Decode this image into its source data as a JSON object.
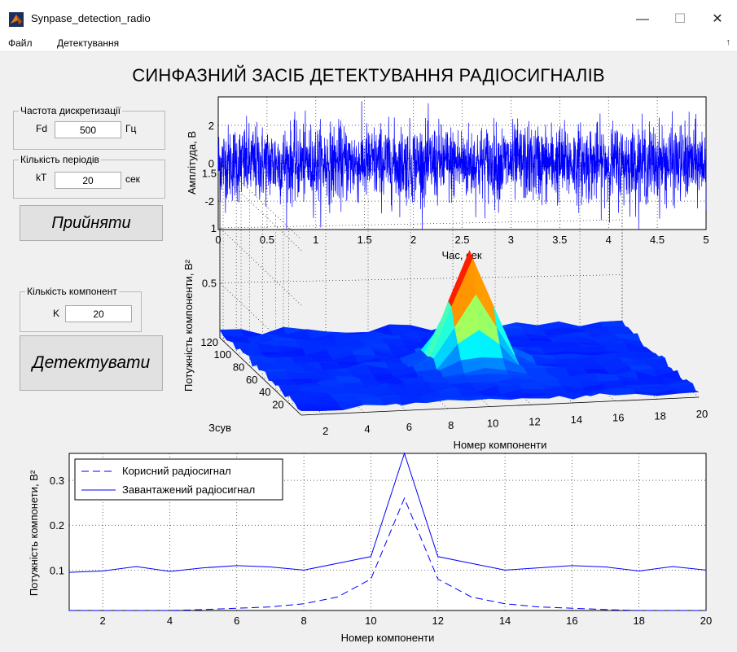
{
  "window": {
    "title": "Synpase_detection_radio",
    "icon": "matlab-icon",
    "controls": {
      "minimize": "—",
      "maximize": "☐",
      "close": "✕"
    }
  },
  "menu": {
    "items": [
      "Файл",
      "Детектування"
    ],
    "overflow_arrow": "↑"
  },
  "app_title": "СИНФАЗНИЙ ЗАСІБ ДЕТЕКТУВАННЯ РАДІОСИГНАЛІВ",
  "sampling_panel": {
    "title": "Частота дискретизації",
    "label": "Fd",
    "value": "500",
    "unit": "Гц"
  },
  "periods_panel": {
    "title": "Кількість періодів",
    "label": "kT",
    "value": "20",
    "unit": "сек"
  },
  "accept_button": "Прийняти",
  "components_panel": {
    "title": "Кількість компонент",
    "label": "K",
    "value": "20"
  },
  "detect_button": "Детектувати",
  "colors": {
    "plot_line": "#0000ff",
    "surface_low": "#0000b4",
    "surface_high": "#b40000",
    "background": "#f0f0f0",
    "axes_bg": "#ffffff"
  },
  "chart_data": [
    {
      "type": "line",
      "series_kind": "noise",
      "xlabel": "Час, сек",
      "ylabel": "Амплітуда, В",
      "xlim": [
        0,
        5
      ],
      "ylim": [
        -3.5,
        3.5
      ],
      "xticks": [
        "0",
        "0.5",
        "1",
        "1.5",
        "2",
        "2.5",
        "3",
        "3.5",
        "4",
        "4.5",
        "5"
      ],
      "yticks": [
        "-2",
        "0",
        "2"
      ],
      "grid": true,
      "noise_std": 1.0,
      "num_samples": 2500
    },
    {
      "type": "surface",
      "xlabel": "Номер компоненти",
      "ylabel": "Зсув",
      "zlabel": "Потужність компоненти, В²",
      "xticks": [
        "2",
        "4",
        "6",
        "8",
        "10",
        "12",
        "14",
        "16",
        "18",
        "20"
      ],
      "yticks": [
        "20",
        "40",
        "60",
        "80",
        "100",
        "120"
      ],
      "zticks": [
        "0.5",
        "1",
        "1.5"
      ],
      "xlim": [
        1,
        20
      ],
      "ylim": [
        1,
        125
      ],
      "zlim": [
        0,
        1.6
      ],
      "peak": {
        "component": 11,
        "shift": 64,
        "value": 1.0
      },
      "colormap": "jet"
    },
    {
      "type": "line",
      "xlabel": "Номер компоненти",
      "ylabel": "Потужність компонети, В²",
      "xlim": [
        1,
        20
      ],
      "ylim": [
        0.01,
        0.36
      ],
      "xticks": [
        "2",
        "4",
        "6",
        "8",
        "10",
        "12",
        "14",
        "16",
        "18",
        "20"
      ],
      "yticks": [
        "0.1",
        "0.2",
        "0.3"
      ],
      "grid": true,
      "legend": "top-left",
      "x": [
        1,
        2,
        3,
        4,
        5,
        6,
        7,
        8,
        9,
        10,
        11,
        12,
        13,
        14,
        15,
        16,
        17,
        18,
        19,
        20
      ],
      "series": [
        {
          "name": "Корисний радіосигнал",
          "style": "dashed",
          "values": [
            0.01,
            0.01,
            0.01,
            0.01,
            0.012,
            0.015,
            0.018,
            0.025,
            0.04,
            0.08,
            0.26,
            0.08,
            0.04,
            0.025,
            0.018,
            0.015,
            0.012,
            0.01,
            0.01,
            0.01
          ]
        },
        {
          "name": "Завантажений радіосигнал",
          "style": "solid",
          "values": [
            0.095,
            0.098,
            0.108,
            0.097,
            0.105,
            0.11,
            0.107,
            0.1,
            0.115,
            0.13,
            0.36,
            0.13,
            0.115,
            0.1,
            0.105,
            0.11,
            0.107,
            0.098,
            0.108,
            0.1
          ]
        }
      ]
    }
  ]
}
